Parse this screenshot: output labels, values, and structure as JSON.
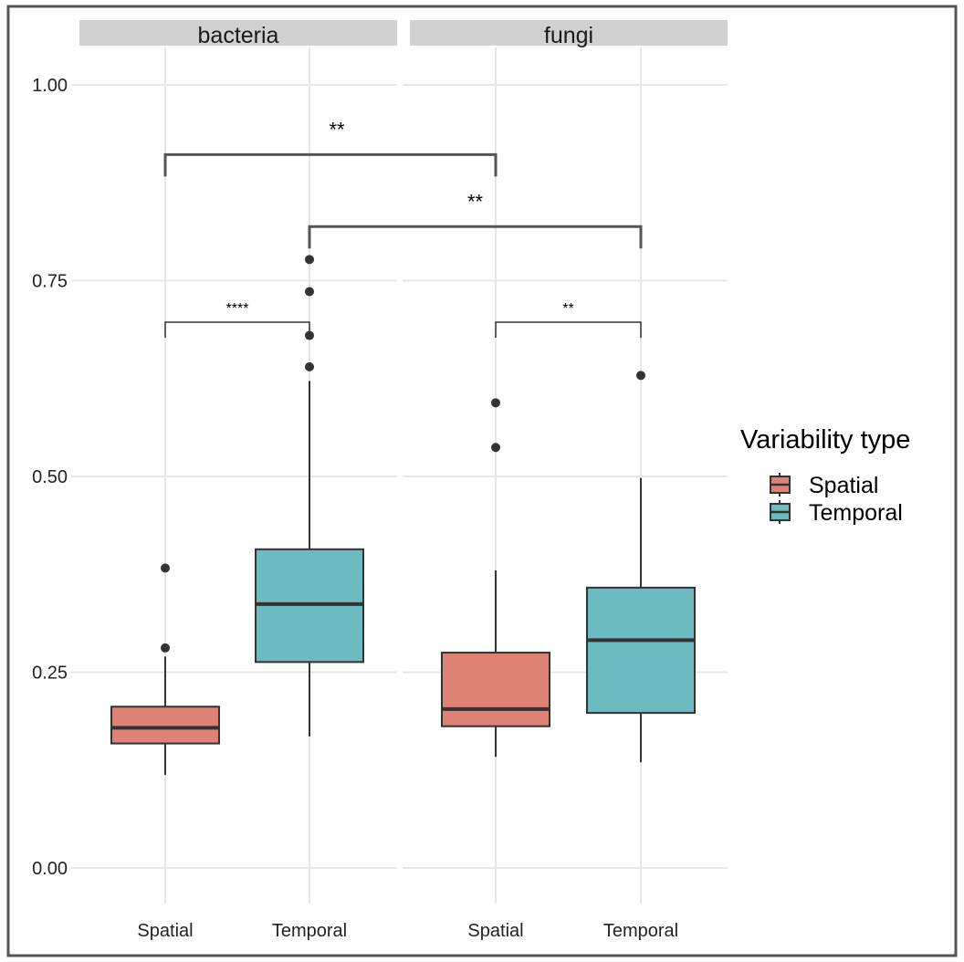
{
  "chart_data": {
    "type": "boxplot",
    "facets": [
      "bacteria",
      "fungi"
    ],
    "categories": [
      "Spatial",
      "Temporal"
    ],
    "ylim": [
      0,
      1
    ],
    "yticks": [
      "0.00",
      "0.25",
      "0.50",
      "0.75",
      "1.00"
    ],
    "legend": {
      "title": "Variability type",
      "position": "right",
      "entries": [
        {
          "label": "Spatial",
          "color": "#DF8276"
        },
        {
          "label": "Temporal",
          "color": "#6CBBC0"
        }
      ]
    },
    "grid": true,
    "boxes": [
      {
        "facet": "bacteria",
        "category": "Spatial",
        "min": 0.119,
        "q1": 0.159,
        "median": 0.179,
        "q3": 0.206,
        "max": 0.27,
        "outliers": [
          0.281,
          0.383
        ]
      },
      {
        "facet": "bacteria",
        "category": "Temporal",
        "min": 0.168,
        "q1": 0.263,
        "median": 0.337,
        "q3": 0.407,
        "max": 0.622,
        "outliers": [
          0.64,
          0.68,
          0.736,
          0.777
        ]
      },
      {
        "facet": "fungi",
        "category": "Spatial",
        "min": 0.142,
        "q1": 0.181,
        "median": 0.203,
        "q3": 0.275,
        "max": 0.38,
        "outliers": [
          0.537,
          0.594
        ]
      },
      {
        "facet": "fungi",
        "category": "Temporal",
        "min": 0.135,
        "q1": 0.198,
        "median": 0.291,
        "q3": 0.358,
        "max": 0.498,
        "outliers": [
          0.629
        ]
      }
    ],
    "significance": [
      {
        "from": [
          "bacteria",
          "Spatial"
        ],
        "to": [
          "bacteria",
          "Temporal"
        ],
        "y": 0.697,
        "label": "****"
      },
      {
        "from": [
          "fungi",
          "Spatial"
        ],
        "to": [
          "fungi",
          "Temporal"
        ],
        "y": 0.697,
        "label": "**"
      },
      {
        "from": [
          "bacteria",
          "Spatial"
        ],
        "to": [
          "fungi",
          "Spatial"
        ],
        "y": 0.911,
        "label": "**"
      },
      {
        "from": [
          "bacteria",
          "Temporal"
        ],
        "to": [
          "fungi",
          "Temporal"
        ],
        "y": 0.819,
        "label": "**"
      }
    ]
  }
}
